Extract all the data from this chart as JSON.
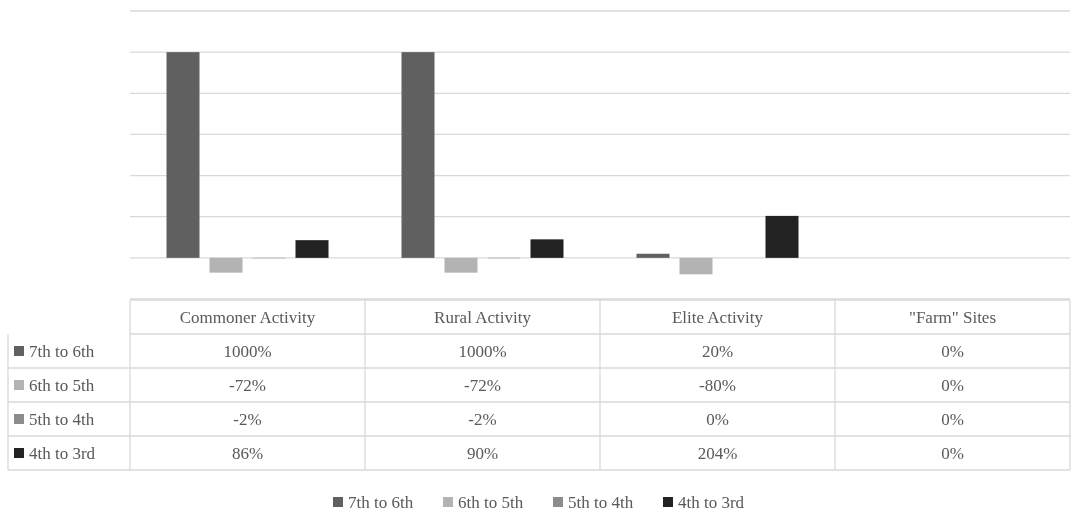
{
  "chart_data": {
    "type": "bar",
    "categories": [
      "Commoner Activity",
      "Rural Activity",
      "Elite Activity",
      "\"Farm\" Sites"
    ],
    "series": [
      {
        "name": "7th to 6th",
        "color": "#606060",
        "values": [
          1000,
          1000,
          20,
          0
        ],
        "value_labels": [
          "1000%",
          "1000%",
          "20%",
          "0%"
        ]
      },
      {
        "name": "6th to 5th",
        "color": "#b3b3b3",
        "values": [
          -72,
          -72,
          -80,
          0
        ],
        "value_labels": [
          "-72%",
          "-72%",
          "-80%",
          "0%"
        ]
      },
      {
        "name": "5th to 4th",
        "color": "#8c8c8c",
        "values": [
          -2,
          -2,
          0,
          0
        ],
        "value_labels": [
          "-2%",
          "-2%",
          "0%",
          "0%"
        ]
      },
      {
        "name": "4th to 3rd",
        "color": "#222222",
        "values": [
          86,
          90,
          204,
          0
        ],
        "value_labels": [
          "86%",
          "90%",
          "204%",
          "0%"
        ]
      }
    ],
    "ylim": [
      -200,
      1200
    ],
    "yticks": [
      {
        "value": -200,
        "label": null
      },
      {
        "value": 0,
        "label": null
      },
      {
        "value": 200,
        "label": null
      },
      {
        "value": 400,
        "label": null
      },
      {
        "value": 600,
        "label": null
      },
      {
        "value": 800,
        "label": null
      },
      {
        "value": 1000,
        "label": null
      },
      {
        "value": 1200,
        "label": null
      }
    ],
    "grid": "y",
    "legend": "bottom",
    "tick_labels": "x"
  }
}
